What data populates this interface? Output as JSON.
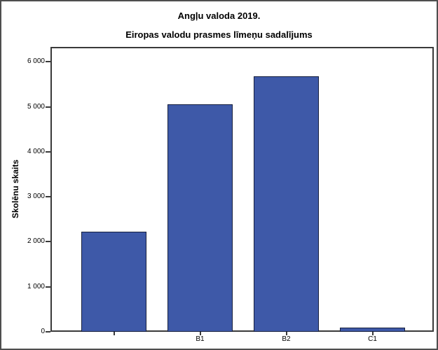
{
  "chart_data": {
    "type": "bar",
    "title": "Angļu valoda 2019.",
    "subtitle": "Eiropas valodu prasmes līmeņu sadalījums",
    "xlabel": "",
    "ylabel": "Skolēnu skaits",
    "categories": [
      "",
      "B1",
      "B2",
      "C1"
    ],
    "values": [
      2230,
      5060,
      5680,
      90
    ],
    "yticks": [
      0,
      1000,
      2000,
      3000,
      4000,
      5000,
      6000
    ],
    "ytick_labels": [
      "0",
      "1 000",
      "2 000",
      "3 000",
      "4 000",
      "5 000",
      "6 000"
    ],
    "ylim": [
      0,
      6330
    ],
    "grid": false,
    "legend_position": "none",
    "bar_fill_color": "#3E59A8",
    "bar_border_color": "#161F3D",
    "axis_color": "#3A3A3A",
    "figure_border_color": "#4E4E4E"
  }
}
